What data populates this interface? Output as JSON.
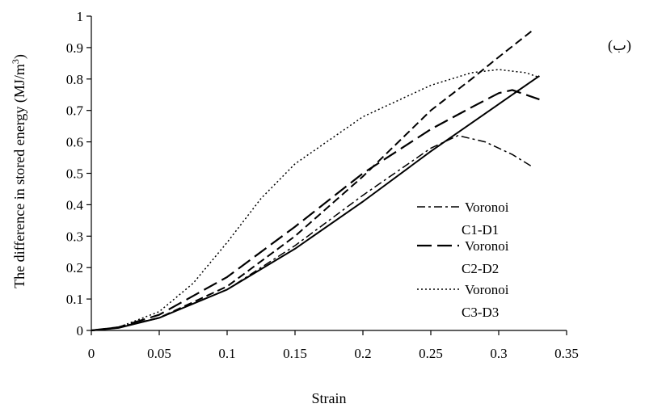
{
  "chart_data": {
    "type": "line",
    "title": "",
    "corner_label": "(ب)",
    "xlabel": "Strain",
    "ylabel_main": "The difference in stored energy (MJ/m",
    "ylabel_sup": "3",
    "ylabel_close": ")",
    "xlim": [
      0,
      0.35
    ],
    "ylim": [
      0,
      1
    ],
    "xticks": [
      "0",
      "0.05",
      "0.1",
      "0.15",
      "0.2",
      "0.25",
      "0.3",
      "0.35"
    ],
    "yticks": [
      "0",
      "0.1",
      "0.2",
      "0.3",
      "0.4",
      "0.5",
      "0.6",
      "0.7",
      "0.8",
      "0.9",
      "1"
    ],
    "grid": false,
    "legend_position": "right",
    "legend": [
      {
        "line1": "Voronoi",
        "line2": "C1-D1",
        "dash": "dashdot"
      },
      {
        "line1": "Voronoi",
        "line2": "C2-D2",
        "dash": "longdash"
      },
      {
        "line1": "Voronoi",
        "line2": "C3-D3",
        "dash": "dotted"
      }
    ],
    "series": [
      {
        "dash": "dashdot",
        "points": [
          [
            0,
            0
          ],
          [
            0.02,
            0.008
          ],
          [
            0.05,
            0.04
          ],
          [
            0.1,
            0.13
          ],
          [
            0.15,
            0.27
          ],
          [
            0.2,
            0.43
          ],
          [
            0.25,
            0.58
          ],
          [
            0.27,
            0.62
          ],
          [
            0.29,
            0.6
          ],
          [
            0.31,
            0.56
          ],
          [
            0.325,
            0.52
          ]
        ]
      },
      {
        "dash": "dashed",
        "points": [
          [
            0,
            0
          ],
          [
            0.02,
            0.01
          ],
          [
            0.05,
            0.04
          ],
          [
            0.1,
            0.14
          ],
          [
            0.15,
            0.3
          ],
          [
            0.2,
            0.49
          ],
          [
            0.25,
            0.7
          ],
          [
            0.28,
            0.8
          ],
          [
            0.3,
            0.87
          ],
          [
            0.325,
            0.955
          ]
        ]
      },
      {
        "dash": "longdash",
        "points": [
          [
            0,
            0
          ],
          [
            0.02,
            0.01
          ],
          [
            0.05,
            0.05
          ],
          [
            0.1,
            0.17
          ],
          [
            0.15,
            0.33
          ],
          [
            0.2,
            0.5
          ],
          [
            0.25,
            0.64
          ],
          [
            0.28,
            0.71
          ],
          [
            0.3,
            0.755
          ],
          [
            0.31,
            0.765
          ],
          [
            0.32,
            0.75
          ],
          [
            0.33,
            0.735
          ]
        ]
      },
      {
        "dash": "dotted",
        "points": [
          [
            0,
            0
          ],
          [
            0.02,
            0.01
          ],
          [
            0.05,
            0.06
          ],
          [
            0.075,
            0.15
          ],
          [
            0.1,
            0.28
          ],
          [
            0.125,
            0.42
          ],
          [
            0.15,
            0.53
          ],
          [
            0.2,
            0.68
          ],
          [
            0.25,
            0.78
          ],
          [
            0.28,
            0.82
          ],
          [
            0.3,
            0.83
          ],
          [
            0.32,
            0.82
          ],
          [
            0.33,
            0.805
          ]
        ]
      },
      {
        "dash": "solid",
        "points": [
          [
            0,
            0
          ],
          [
            0.02,
            0.008
          ],
          [
            0.05,
            0.04
          ],
          [
            0.1,
            0.13
          ],
          [
            0.15,
            0.26
          ],
          [
            0.2,
            0.41
          ],
          [
            0.25,
            0.57
          ],
          [
            0.3,
            0.72
          ],
          [
            0.33,
            0.81
          ]
        ]
      }
    ]
  }
}
